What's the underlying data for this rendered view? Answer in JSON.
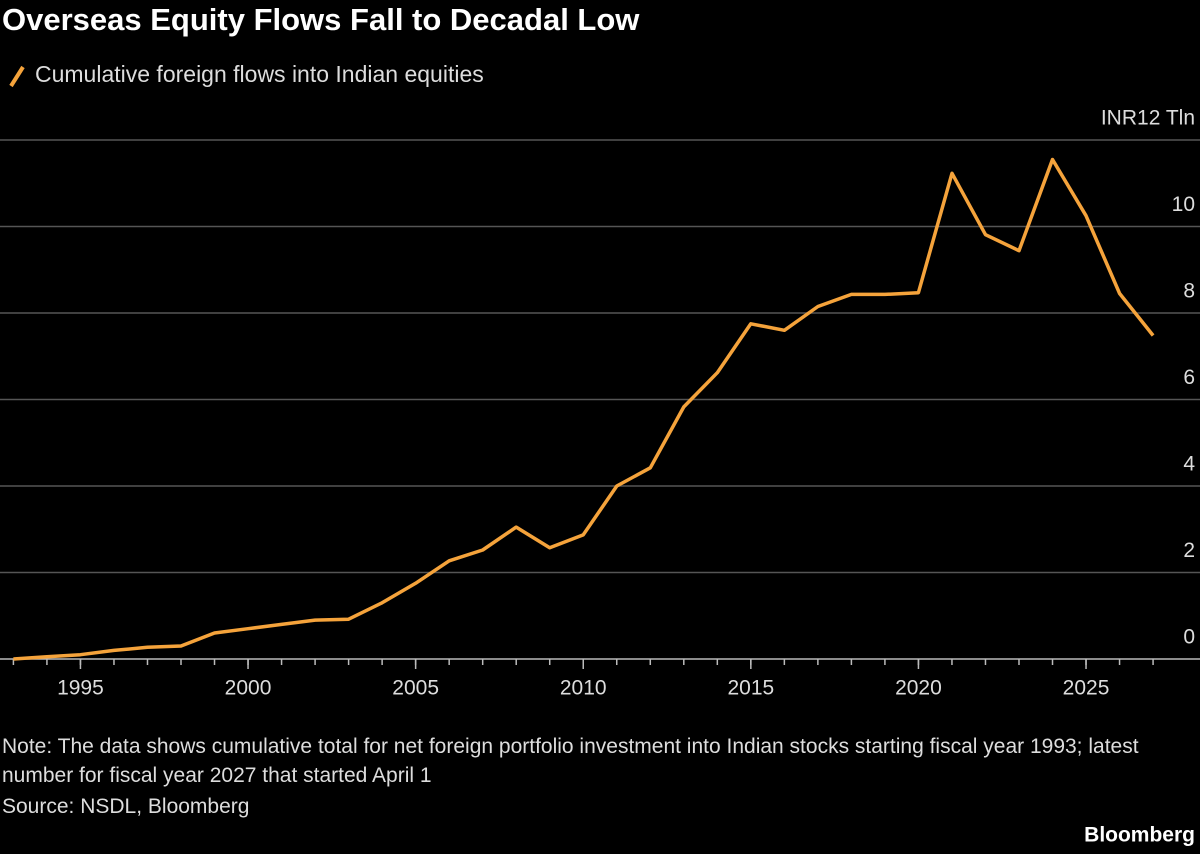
{
  "chart_data": {
    "type": "line",
    "title": "Overseas Equity Flows Fall to Decadal Low",
    "note": "Note: The data shows cumulative total for net foreign portfolio investment into Indian stocks starting fiscal year 1993; latest number for fiscal year 2027 that started April 1",
    "source": "Source: NSDL, Bloomberg",
    "brand": "Bloomberg",
    "x": [
      1993,
      1994,
      1995,
      1996,
      1997,
      1998,
      1999,
      2000,
      2001,
      2002,
      2003,
      2004,
      2005,
      2006,
      2007,
      2008,
      2009,
      2010,
      2011,
      2012,
      2013,
      2014,
      2015,
      2016,
      2017,
      2018,
      2019,
      2020,
      2021,
      2022,
      2023,
      2024,
      2025,
      2026,
      2027
    ],
    "series": [
      {
        "name": "Cumulative foreign flows into Indian equities",
        "color": "#f5a33b",
        "values": [
          0,
          0.05,
          0.1,
          0.2,
          0.27,
          0.3,
          0.6,
          0.7,
          0.8,
          0.9,
          0.92,
          1.3,
          1.75,
          2.27,
          2.52,
          3.05,
          2.57,
          2.87,
          4.0,
          4.42,
          5.83,
          6.62,
          7.75,
          7.6,
          8.15,
          8.43,
          8.43,
          8.47,
          11.23,
          9.81,
          9.44,
          11.55,
          10.25,
          8.45,
          7.48
        ]
      }
    ],
    "xlim": [
      1992.6,
      2028.4
    ],
    "xticks": [
      1995,
      2000,
      2005,
      2010,
      2015,
      2020,
      2025
    ],
    "ylim": [
      0,
      12
    ],
    "yticks": [
      0,
      2,
      4,
      6,
      8,
      10,
      {
        "value": 12,
        "label": "INR12 Tln"
      }
    ],
    "grid": true
  }
}
